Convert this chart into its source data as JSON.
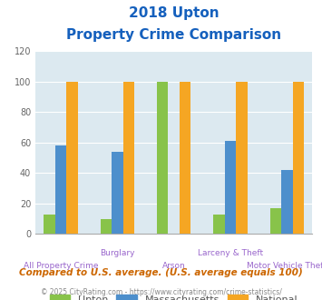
{
  "title_line1": "2018 Upton",
  "title_line2": "Property Crime Comparison",
  "categories": [
    "All Property Crime",
    "Burglary",
    "Arson",
    "Larceny & Theft",
    "Motor Vehicle Theft"
  ],
  "series": {
    "Upton": [
      13,
      10,
      100,
      13,
      17
    ],
    "Massachusetts": [
      58,
      54,
      0,
      61,
      42
    ],
    "National": [
      100,
      100,
      100,
      100,
      100
    ]
  },
  "colors": {
    "Upton": "#88c34a",
    "Massachusetts": "#4d8fcc",
    "National": "#f5a623"
  },
  "ylim": [
    0,
    120
  ],
  "yticks": [
    0,
    20,
    40,
    60,
    80,
    100,
    120
  ],
  "background_color": "#dce9f0",
  "title_color": "#1560bd",
  "footer_text": "Compared to U.S. average. (U.S. average equals 100)",
  "credit_text": "© 2025 CityRating.com - https://www.cityrating.com/crime-statistics/",
  "footer_color": "#cc6600",
  "credit_color": "#888888",
  "label_color": "#9966cc",
  "legend_text_color": "#555555"
}
